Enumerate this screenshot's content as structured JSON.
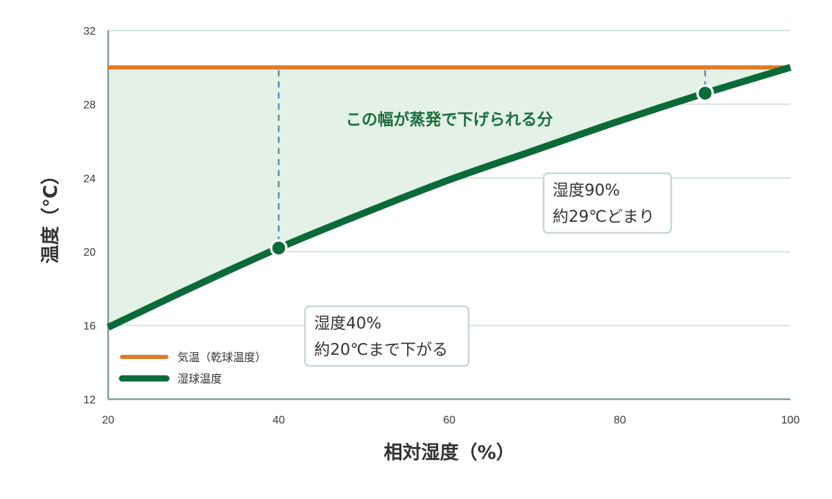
{
  "chart_data": {
    "type": "line",
    "xlabel": "相対湿度（%）",
    "ylabel": "温度（℃）",
    "xlim": [
      20,
      100
    ],
    "ylim": [
      12,
      32
    ],
    "x_ticks": [
      20,
      40,
      60,
      80,
      100
    ],
    "y_ticks": [
      12,
      16,
      20,
      24,
      28,
      32
    ],
    "grid": true,
    "legend_placement": "bottom-left",
    "series": [
      {
        "name": "気温（乾球温度）",
        "color": "#e07b26",
        "x": [
          20,
          100
        ],
        "y": [
          30,
          30
        ]
      },
      {
        "name": "湿球温度",
        "color": "#0b6b38",
        "x": [
          20,
          30,
          40,
          50,
          60,
          70,
          80,
          90,
          100
        ],
        "y": [
          15.9,
          18.1,
          20.2,
          22.1,
          23.9,
          25.5,
          27.1,
          28.6,
          30.0
        ]
      }
    ],
    "points": [
      {
        "x": 40,
        "y": 20.2
      },
      {
        "x": 90,
        "y": 28.6
      }
    ],
    "band_label": "この幅が蒸発で下げられる分",
    "annotations": [
      {
        "lines": [
          "湿度90%",
          "約29℃どまり"
        ]
      },
      {
        "lines": [
          "湿度40%",
          "約20℃まで下がる"
        ]
      }
    ],
    "colors": {
      "fill": "#e4f1e7",
      "grid": "#d4e4dc",
      "axis": "#7f9c93",
      "dashed": "#5b8fa8",
      "annotation_border": "#c4d8cf"
    }
  }
}
